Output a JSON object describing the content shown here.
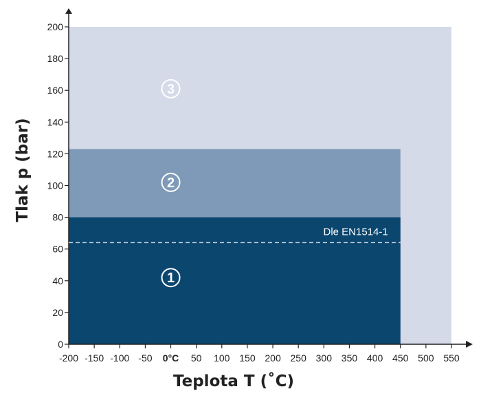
{
  "chart_data": {
    "type": "area",
    "xlabel": "Teplota  T (˚C)",
    "ylabel": "Tlak p (bar)",
    "xlim": [
      -200,
      550
    ],
    "ylim": [
      0,
      200
    ],
    "x_ticks": [
      -200,
      -150,
      -100,
      -50,
      0,
      50,
      100,
      150,
      200,
      250,
      300,
      350,
      400,
      450,
      500,
      550
    ],
    "x_tick_labels": [
      "-200",
      "-150",
      "-100",
      "-50",
      "0°C",
      "50",
      "100",
      "150",
      "200",
      "250",
      "300",
      "350",
      "400",
      "450",
      "500",
      "550"
    ],
    "y_ticks": [
      0,
      20,
      40,
      60,
      80,
      100,
      120,
      140,
      160,
      180,
      200
    ],
    "y_tick_labels": [
      "0",
      "20",
      "40",
      "60",
      "80",
      "100",
      "120",
      "140",
      "160",
      "180",
      "200"
    ],
    "zones": [
      {
        "label": "3",
        "x_range": [
          -200,
          550
        ],
        "y_range": [
          0,
          200
        ],
        "label_at": [
          0,
          161
        ],
        "color": "#d5dae8"
      },
      {
        "label": "2",
        "x_range": [
          -200,
          450
        ],
        "y_range": [
          0,
          123
        ],
        "label_at": [
          0,
          102
        ],
        "color": "#7f9ab9"
      },
      {
        "label": "1",
        "x_range": [
          -200,
          450
        ],
        "y_range": [
          0,
          80
        ],
        "label_at": [
          0,
          42
        ],
        "color": "#0b466e"
      }
    ],
    "reference_line": {
      "y": 64,
      "x_range": [
        -200,
        450
      ],
      "style": "dashed",
      "color": "#d0d8e4",
      "label": "Dle EN1514-1",
      "label_at": [
        450,
        71
      ]
    },
    "grid": false
  }
}
